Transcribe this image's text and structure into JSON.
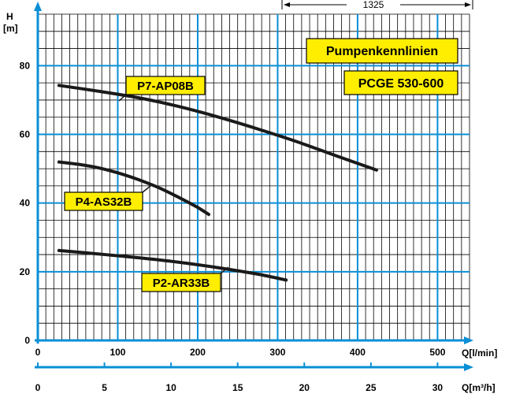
{
  "chart_data": {
    "type": "line",
    "title": "Pumpenkennlinien",
    "subtitle": "PCGE 530-600",
    "dimension_label": "1325",
    "ylabel": {
      "symbol": "H",
      "unit": "[m]"
    },
    "xlabel_primary": "Q[l/min]",
    "xlabel_secondary": "Q[m³/h]",
    "xlim": [
      0,
      540
    ],
    "ylim": [
      0,
      95
    ],
    "x_ticks": [
      0,
      100,
      200,
      300,
      400,
      500
    ],
    "x_tick_labels": [
      "0",
      "100",
      "200",
      "300",
      "400",
      "500"
    ],
    "x2_lim": [
      0,
      32.4
    ],
    "x2_ticks": [
      0,
      5,
      10,
      15,
      20,
      25,
      30
    ],
    "x2_tick_labels": [
      "0",
      "5",
      "10",
      "15",
      "20",
      "25",
      "30"
    ],
    "y_ticks": [
      0,
      20,
      40,
      60,
      80
    ],
    "y_tick_labels": [
      "0",
      "20",
      "40",
      "60",
      "80"
    ],
    "grid": true,
    "grid_minor_x": 10,
    "grid_minor_y": 4,
    "colors": {
      "major_grid": "#0a8fd6",
      "axis": "#0a8fd6",
      "minor_grid": "#000000",
      "label_box": "#ffee00",
      "curve": "#1a1a1a"
    },
    "series": [
      {
        "name": "P7-AP08B",
        "x": [
          25,
          75,
          125,
          175,
          225,
          275,
          325,
          375,
          425
        ],
        "y": [
          74.3,
          72.6,
          70.7,
          68.2,
          65.1,
          61.6,
          57.8,
          53.6,
          49.5
        ]
      },
      {
        "name": "P4-AS32B",
        "x": [
          25,
          50,
          75,
          100,
          125,
          150,
          175,
          200,
          215
        ],
        "y": [
          52,
          51.3,
          50.3,
          48.8,
          46.9,
          44.6,
          41.8,
          38.7,
          36.5
        ]
      },
      {
        "name": "P2-AR33B",
        "x": [
          25,
          75,
          125,
          175,
          225,
          275,
          312
        ],
        "y": [
          26.2,
          25.2,
          24.1,
          22.8,
          21.2,
          19.3,
          17.5
        ]
      }
    ]
  }
}
